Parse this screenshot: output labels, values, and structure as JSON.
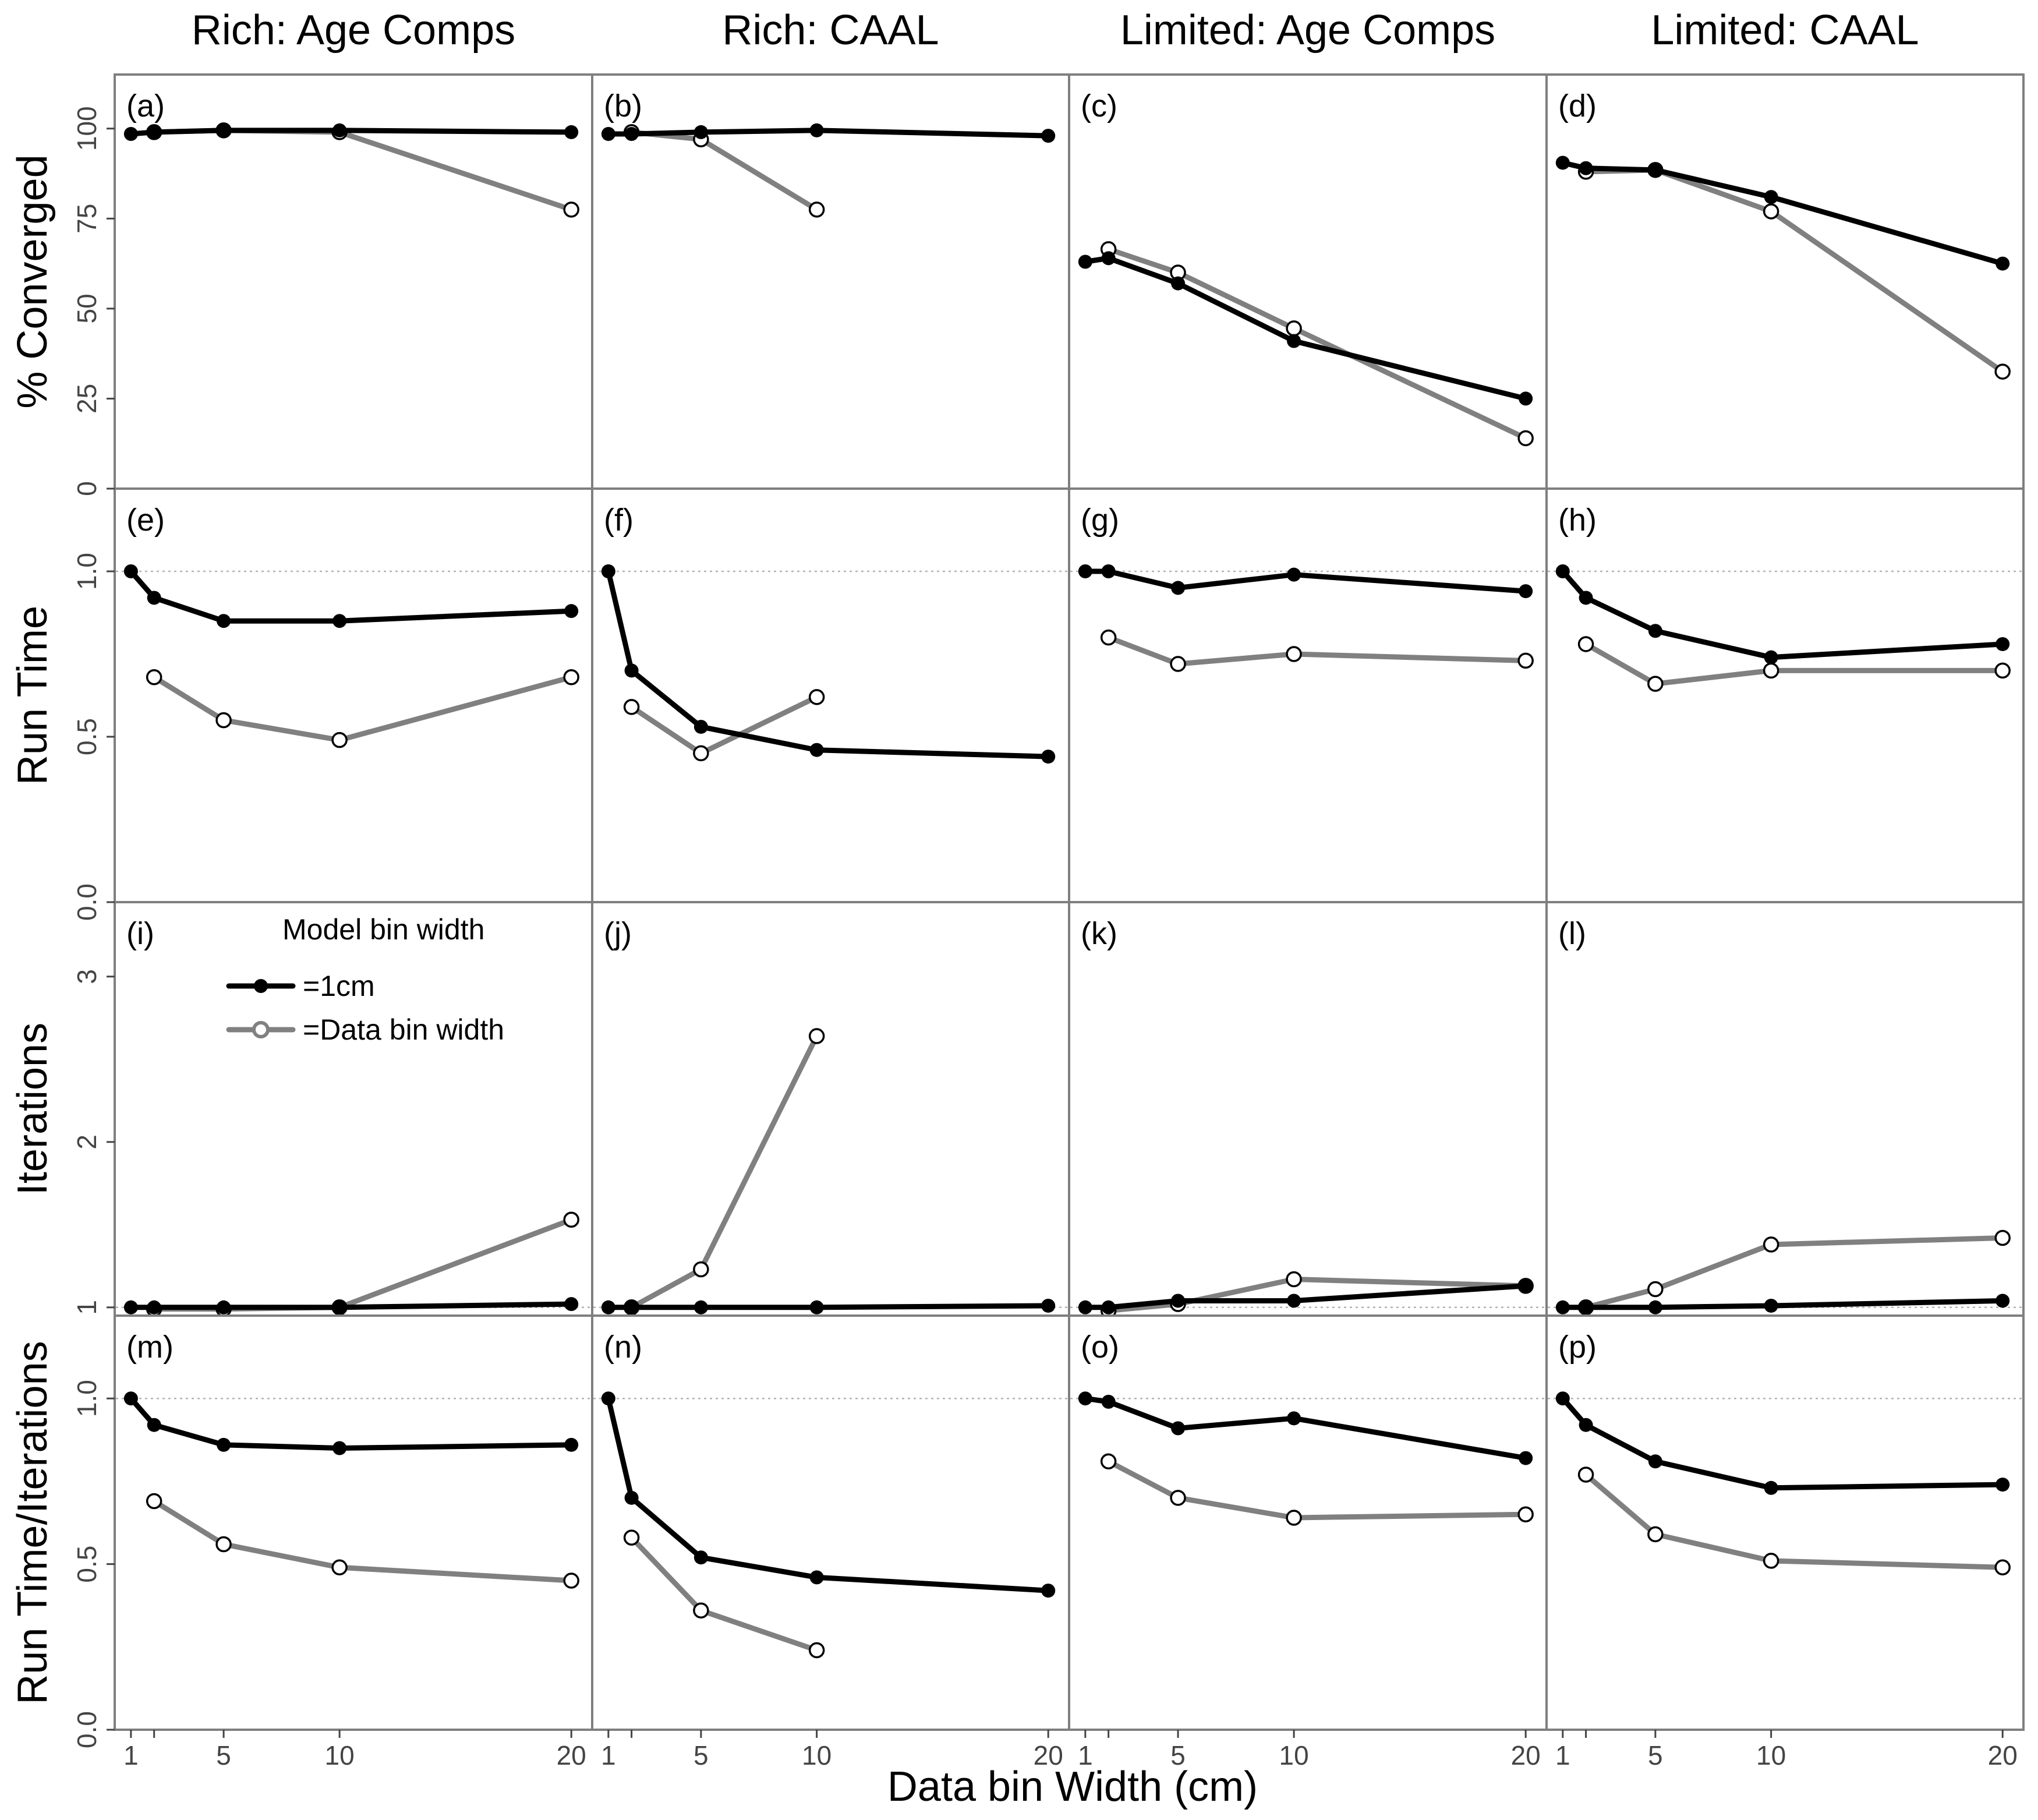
{
  "chart_data": {
    "type": "line",
    "layout": "4x4 facet grid",
    "columns": [
      "Rich: Age Comps",
      "Rich: CAAL",
      "Limited: Age Comps",
      "Limited: CAAL"
    ],
    "rows": [
      {
        "label": "% Converged",
        "ylim": [
          0,
          115
        ],
        "yticks": [
          0,
          25,
          50,
          75,
          100
        ],
        "ytick_labels": [
          "0",
          "25",
          "50",
          "75",
          "100"
        ],
        "refline": null
      },
      {
        "label": "Run Time",
        "ylim": [
          0,
          1.25
        ],
        "yticks": [
          0,
          0.5,
          1.0
        ],
        "ytick_labels": [
          "0.0",
          "0.5",
          "1.0"
        ],
        "refline": 1
      },
      {
        "label": "Iterations",
        "ylim": [
          0.95,
          3.45
        ],
        "yticks": [
          1,
          2,
          3
        ],
        "ytick_labels": [
          "1",
          "2",
          "3"
        ],
        "refline": 1
      },
      {
        "label": "Run Time/Iterations",
        "ylim": [
          0,
          1.25
        ],
        "yticks": [
          0,
          0.5,
          1.0
        ],
        "ytick_labels": [
          "0.0",
          "0.5",
          "1.0"
        ],
        "refline": 1
      }
    ],
    "xlabel": "Data bin Width (cm)",
    "xlim": [
      0.3,
      20.9
    ],
    "xticks": [
      1,
      2,
      5,
      10,
      20
    ],
    "xtick_labels": [
      "1",
      "",
      "5",
      "10",
      "20"
    ],
    "legend": {
      "title": "Model bin width",
      "position": "inside panel (i), top-left",
      "entries": [
        "=1cm",
        "=Data bin width"
      ]
    },
    "series_styles": [
      {
        "name": "=1cm",
        "color": "#000000",
        "marker": "filled"
      },
      {
        "name": "=Data bin width",
        "color": "#808080",
        "marker": "open"
      }
    ],
    "panels": [
      {
        "tag": "(a)",
        "series": [
          {
            "name": "=1cm",
            "x": [
              1,
              2,
              5,
              10,
              20
            ],
            "y": [
              98.5,
              99,
              99.5,
              99.5,
              99
            ]
          },
          {
            "name": "=Data bin width",
            "x": [
              2,
              5,
              10,
              20
            ],
            "y": [
              99,
              99.5,
              99,
              77.5
            ]
          }
        ]
      },
      {
        "tag": "(b)",
        "series": [
          {
            "name": "=1cm",
            "x": [
              1,
              2,
              5,
              10,
              20
            ],
            "y": [
              98.5,
              98.5,
              99,
              99.5,
              98
            ]
          },
          {
            "name": "=Data bin width",
            "x": [
              2,
              5,
              10
            ],
            "y": [
              99,
              97,
              77.5
            ]
          }
        ]
      },
      {
        "tag": "(c)",
        "series": [
          {
            "name": "=1cm",
            "x": [
              1,
              2,
              5,
              10,
              20
            ],
            "y": [
              63,
              64,
              57,
              41,
              25
            ]
          },
          {
            "name": "=Data bin width",
            "x": [
              2,
              5,
              10,
              20
            ],
            "y": [
              66.5,
              60,
              44.5,
              14
            ]
          }
        ]
      },
      {
        "tag": "(d)",
        "series": [
          {
            "name": "=1cm",
            "x": [
              1,
              2,
              5,
              10,
              20
            ],
            "y": [
              90.5,
              89,
              88.5,
              81,
              62.5
            ]
          },
          {
            "name": "=Data bin width",
            "x": [
              2,
              5,
              10,
              20
            ],
            "y": [
              88,
              88.5,
              77,
              32.5
            ]
          }
        ]
      },
      {
        "tag": "(e)",
        "series": [
          {
            "name": "=1cm",
            "x": [
              1,
              2,
              5,
              10,
              20
            ],
            "y": [
              1.0,
              0.92,
              0.85,
              0.85,
              0.88
            ]
          },
          {
            "name": "=Data bin width",
            "x": [
              2,
              5,
              10,
              20
            ],
            "y": [
              0.68,
              0.55,
              0.49,
              0.68
            ]
          }
        ]
      },
      {
        "tag": "(f)",
        "series": [
          {
            "name": "=1cm",
            "x": [
              1,
              2,
              5,
              10,
              20
            ],
            "y": [
              1.0,
              0.7,
              0.53,
              0.46,
              0.44
            ]
          },
          {
            "name": "=Data bin width",
            "x": [
              2,
              5,
              10
            ],
            "y": [
              0.59,
              0.45,
              0.62
            ]
          }
        ]
      },
      {
        "tag": "(g)",
        "series": [
          {
            "name": "=1cm",
            "x": [
              1,
              2,
              5,
              10,
              20
            ],
            "y": [
              1.0,
              1.0,
              0.95,
              0.99,
              0.94
            ]
          },
          {
            "name": "=Data bin width",
            "x": [
              2,
              5,
              10,
              20
            ],
            "y": [
              0.8,
              0.72,
              0.75,
              0.73
            ]
          }
        ]
      },
      {
        "tag": "(h)",
        "series": [
          {
            "name": "=1cm",
            "x": [
              1,
              2,
              5,
              10,
              20
            ],
            "y": [
              1.0,
              0.92,
              0.82,
              0.74,
              0.78
            ]
          },
          {
            "name": "=Data bin width",
            "x": [
              2,
              5,
              10,
              20
            ],
            "y": [
              0.78,
              0.66,
              0.7,
              0.7
            ]
          }
        ]
      },
      {
        "tag": "(i)",
        "series": [
          {
            "name": "=1cm",
            "x": [
              1,
              2,
              5,
              10,
              20
            ],
            "y": [
              1.0,
              1.0,
              1.0,
              1.0,
              1.02
            ]
          },
          {
            "name": "=Data bin width",
            "x": [
              2,
              5,
              10,
              20
            ],
            "y": [
              0.99,
              0.99,
              1.0,
              1.53
            ]
          }
        ]
      },
      {
        "tag": "(j)",
        "series": [
          {
            "name": "=1cm",
            "x": [
              1,
              2,
              5,
              10,
              20
            ],
            "y": [
              1.0,
              1.0,
              1.0,
              1.0,
              1.01
            ]
          },
          {
            "name": "=Data bin width",
            "x": [
              2,
              5,
              10
            ],
            "y": [
              1.0,
              1.23,
              2.64
            ]
          }
        ]
      },
      {
        "tag": "(k)",
        "series": [
          {
            "name": "=1cm",
            "x": [
              1,
              2,
              5,
              10,
              20
            ],
            "y": [
              1.0,
              1.0,
              1.04,
              1.04,
              1.13
            ]
          },
          {
            "name": "=Data bin width",
            "x": [
              2,
              5,
              10,
              20
            ],
            "y": [
              0.98,
              1.02,
              1.17,
              1.13
            ]
          }
        ]
      },
      {
        "tag": "(l)",
        "series": [
          {
            "name": "=1cm",
            "x": [
              1,
              2,
              5,
              10,
              20
            ],
            "y": [
              1.0,
              1.0,
              1.0,
              1.01,
              1.04
            ]
          },
          {
            "name": "=Data bin width",
            "x": [
              2,
              5,
              10,
              20
            ],
            "y": [
              1.0,
              1.11,
              1.38,
              1.42
            ]
          }
        ]
      },
      {
        "tag": "(m)",
        "series": [
          {
            "name": "=1cm",
            "x": [
              1,
              2,
              5,
              10,
              20
            ],
            "y": [
              1.0,
              0.92,
              0.86,
              0.85,
              0.86
            ]
          },
          {
            "name": "=Data bin width",
            "x": [
              2,
              5,
              10,
              20
            ],
            "y": [
              0.69,
              0.56,
              0.49,
              0.45
            ]
          }
        ]
      },
      {
        "tag": "(n)",
        "series": [
          {
            "name": "=1cm",
            "x": [
              1,
              2,
              5,
              10,
              20
            ],
            "y": [
              1.0,
              0.7,
              0.52,
              0.46,
              0.42
            ]
          },
          {
            "name": "=Data bin width",
            "x": [
              2,
              5,
              10
            ],
            "y": [
              0.58,
              0.36,
              0.24
            ]
          }
        ]
      },
      {
        "tag": "(o)",
        "series": [
          {
            "name": "=1cm",
            "x": [
              1,
              2,
              5,
              10,
              20
            ],
            "y": [
              1.0,
              0.99,
              0.91,
              0.94,
              0.82
            ]
          },
          {
            "name": "=Data bin width",
            "x": [
              2,
              5,
              10,
              20
            ],
            "y": [
              0.81,
              0.7,
              0.64,
              0.65
            ]
          }
        ]
      },
      {
        "tag": "(p)",
        "series": [
          {
            "name": "=1cm",
            "x": [
              1,
              2,
              5,
              10,
              20
            ],
            "y": [
              1.0,
              0.92,
              0.81,
              0.73,
              0.74
            ]
          },
          {
            "name": "=Data bin width",
            "x": [
              2,
              5,
              10,
              20
            ],
            "y": [
              0.77,
              0.59,
              0.51,
              0.49
            ]
          }
        ]
      }
    ]
  }
}
